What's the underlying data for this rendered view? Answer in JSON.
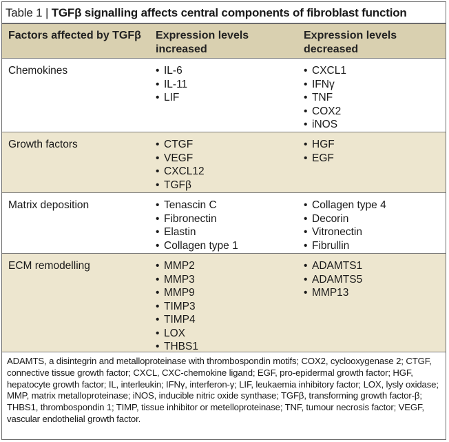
{
  "caption": {
    "label": "Table 1 | ",
    "title": "TGFβ signalling affects central components of fibroblast function"
  },
  "headers": {
    "col1": "Factors affected by TGFβ",
    "col2": "Expression levels increased",
    "col3": "Expression levels decreased"
  },
  "rows": [
    {
      "factor": "Chemokines",
      "increased": [
        "IL-6",
        "IL-11",
        "LIF"
      ],
      "decreased": [
        "CXCL1",
        "IFNγ",
        "TNF",
        "COX2",
        "iNOS"
      ]
    },
    {
      "factor": "Growth factors",
      "increased": [
        "CTGF",
        "VEGF",
        "CXCL12",
        "TGFβ"
      ],
      "decreased": [
        "HGF",
        "EGF"
      ]
    },
    {
      "factor": "Matrix deposition",
      "increased": [
        "Tenascin C",
        "Fibronectin",
        "Elastin",
        "Collagen type 1"
      ],
      "decreased": [
        "Collagen type 4",
        "Decorin",
        "Vitronectin",
        "Fibrullin"
      ]
    },
    {
      "factor": "ECM remodelling",
      "increased": [
        "MMP2",
        "MMP3",
        "MMP9",
        "TIMP3",
        "TIMP4",
        "LOX",
        "THBS1"
      ],
      "decreased": [
        "ADAMTS1",
        "ADAMTS5",
        "MMP13"
      ]
    }
  ],
  "footnote": "ADAMTS, a disintegrin and metalloproteinase with thrombospondin motifs; COX2, cyclooxygenase 2; CTGF, connective tissue growth factor; CXCL, CXC-chemokine ligand; EGF, pro-epidermal growth factor; HGF, hepatocyte growth factor; IL, interleukin; IFNγ, interferon-γ; LIF, leukaemia inhibitory factor; LOX, lysly oxidase; MMP, matrix metalloproteinase; iNOS, inducible nitric oxide synthase; TGFβ, transforming growth factor-β; THBS1, thrombospondin 1; TIMP, tissue inhibitor or metelloproteinase; TNF, tumour necrosis factor; VEGF, vascular endothelial growth factor.",
  "colors": {
    "header_bg": "#d9d0b0",
    "shade_bg": "#ede6cf",
    "border": "#6b6b6b"
  }
}
